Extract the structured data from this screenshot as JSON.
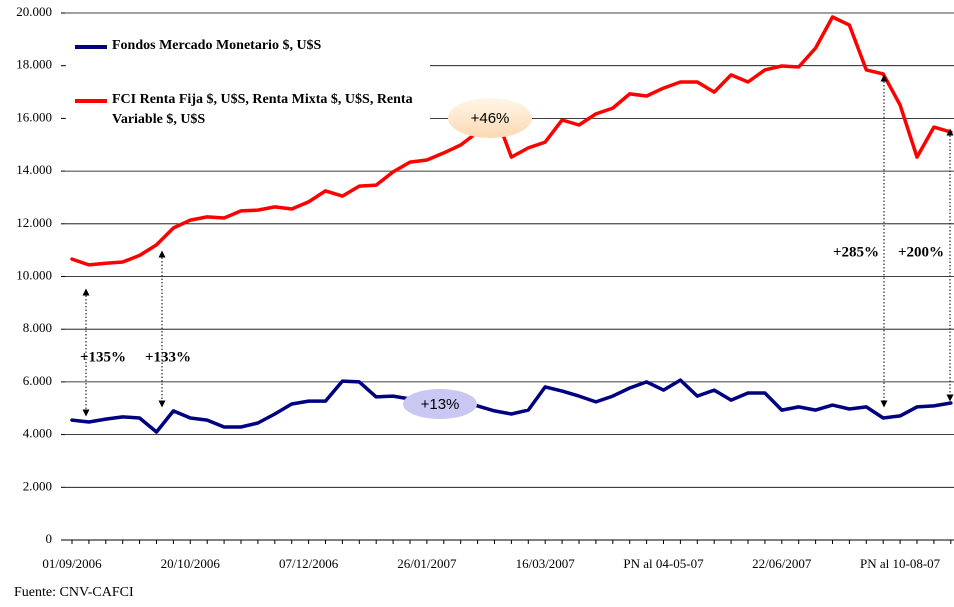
{
  "chart_data": {
    "type": "line",
    "categories": [
      "01/09/2006",
      null,
      null,
      null,
      null,
      null,
      null,
      "20/10/2006",
      null,
      null,
      null,
      null,
      null,
      null,
      "07/12/2006",
      null,
      null,
      null,
      null,
      null,
      null,
      "26/01/2007",
      null,
      null,
      null,
      null,
      null,
      null,
      "16/03/2007",
      null,
      null,
      null,
      null,
      null,
      null,
      "PN al 04-05-07",
      null,
      null,
      null,
      null,
      null,
      null,
      "22/06/2007",
      null,
      null,
      null,
      null,
      null,
      null,
      "PN al 10-08-07",
      null,
      null,
      null
    ],
    "series": [
      {
        "name": "Fondos Mercado Monetario $, U$S",
        "color": "#000080",
        "values": [
          4550,
          4480,
          4590,
          4670,
          4630,
          4100,
          4900,
          4630,
          4550,
          4290,
          4290,
          4440,
          4780,
          5160,
          5270,
          5270,
          6030,
          6000,
          5430,
          5460,
          5350,
          5120,
          5160,
          5200,
          5090,
          4900,
          4780,
          4930,
          5810,
          5650,
          5460,
          5240,
          5460,
          5770,
          6000,
          5690,
          6070,
          5460,
          5690,
          5310,
          5580,
          5580,
          4930,
          5050,
          4930,
          5120,
          4970,
          5050,
          4630,
          4710,
          5050,
          5090,
          5200
        ]
      },
      {
        "name": "FCI Renta Fija $, U$S, Renta Mixta $, U$S, Renta Variable $, U$S",
        "color": "#ff0000",
        "values": [
          10660,
          10440,
          10500,
          10550,
          10800,
          11200,
          11840,
          12140,
          12260,
          12220,
          12490,
          12520,
          12640,
          12560,
          12830,
          13250,
          13050,
          13430,
          13470,
          13970,
          14340,
          14420,
          14690,
          14990,
          15480,
          16240,
          14530,
          14880,
          15100,
          15940,
          15750,
          16170,
          16390,
          16930,
          16850,
          17150,
          17380,
          17380,
          17000,
          17650,
          17380,
          17840,
          17990,
          17950,
          18670,
          19850,
          19540,
          17840,
          17690,
          16510,
          14530,
          15670,
          15480
        ]
      }
    ],
    "ylim": [
      0,
      20000
    ],
    "yticks": [
      0,
      {
        "value": 2000,
        "label": "2.000"
      },
      {
        "value": 4000,
        "label": "4.000"
      },
      {
        "value": 6000,
        "label": "6.000"
      },
      {
        "value": 8000,
        "label": "8.000"
      },
      {
        "value": 10000,
        "label": "10.000"
      },
      {
        "value": 12000,
        "label": "12.000"
      },
      {
        "value": 14000,
        "label": "14.000"
      },
      {
        "value": 16000,
        "label": "16.000"
      },
      {
        "value": 18000,
        "label": "18.000"
      },
      {
        "value": 20000,
        "label": "20.000"
      }
    ],
    "grid": true,
    "annotations": [
      "+135%",
      "+133%",
      "+285%",
      "+200%",
      "+46%",
      "+13%"
    ],
    "source": "Fuente: CNV-CAFCI"
  }
}
